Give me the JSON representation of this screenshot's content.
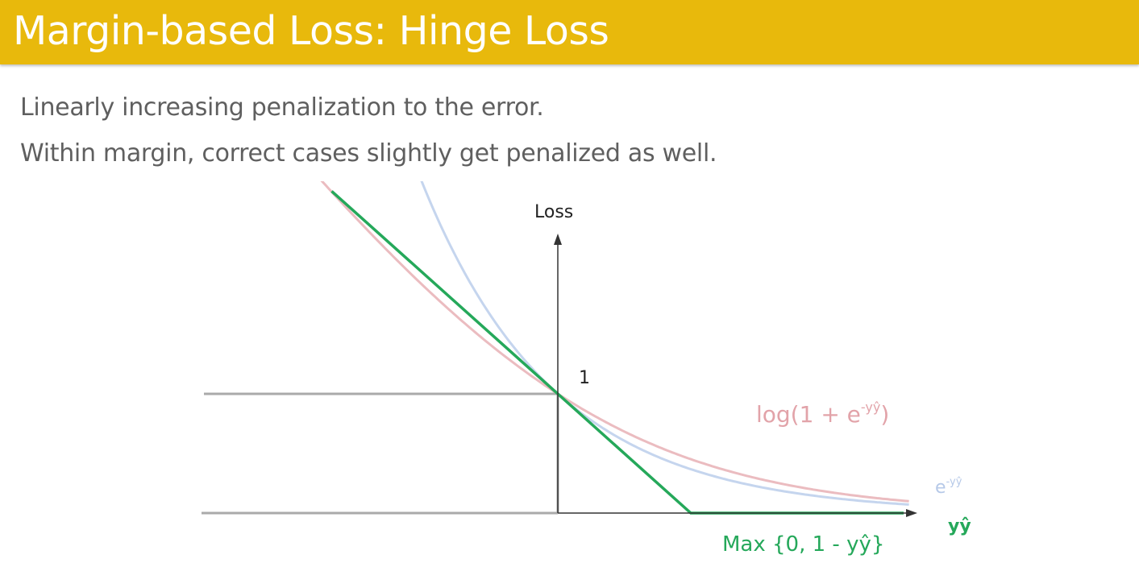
{
  "slide": {
    "title": "Margin-based Loss: Hinge Loss",
    "bullets": [
      "Linearly increasing penalization to the error.",
      "Within margin, correct cases slightly get penalized as well."
    ]
  },
  "chart_data": {
    "type": "line",
    "x_axis_label": "yŷ",
    "y_axis_label": "Loss",
    "y_tick_label": "1",
    "series": [
      {
        "name": "log(1 + e",
        "name_superscript": "-yŷ",
        "name_suffix": ")",
        "color": "#ebbcc0",
        "function": "log(1 + e^(-yŷ))"
      },
      {
        "name": "e",
        "name_superscript": "-yŷ",
        "color": "#c5d5ee",
        "function": "e^(-yŷ)"
      },
      {
        "name": "Max {0, 1 - yŷ}",
        "color": "#25a85a",
        "function": "max(0, 1 - yŷ)"
      }
    ],
    "reference_lines": [
      {
        "label": "y = 1",
        "color": "#aaaaaa"
      },
      {
        "label": "y = 0",
        "color": "#aaaaaa"
      }
    ],
    "colors": {
      "axis": "#333333",
      "reference": "#aaaaaa",
      "hinge": "#25a85a",
      "logistic": "#ebbcc0",
      "exponential": "#c5d5ee"
    }
  }
}
